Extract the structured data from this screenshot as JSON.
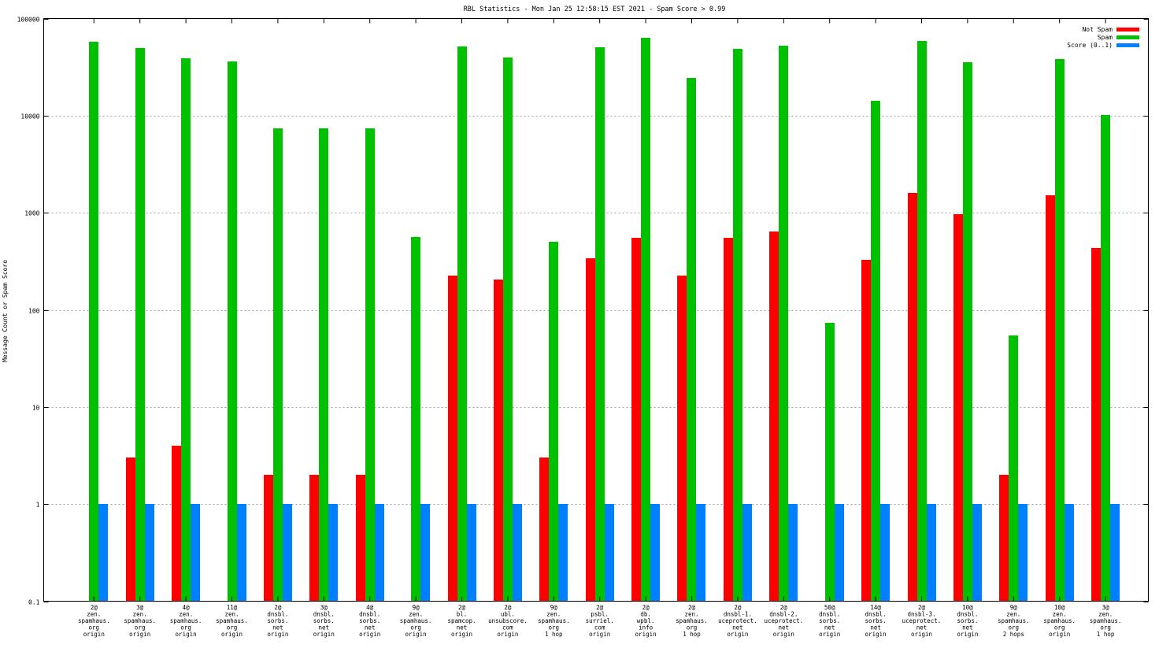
{
  "chart_data": {
    "type": "bar",
    "title": "RBL Statistics - Mon Jan 25 12:58:15 EST 2021 - Spam Score > 0.99",
    "ylabel": "Message Count or Spam Score",
    "xlabel": "",
    "yscale": "log",
    "ylim": [
      0.1,
      100000
    ],
    "yticks": [
      "0.1",
      "1",
      "10",
      "100",
      "1000",
      "10000",
      "100000"
    ],
    "grid": true,
    "legend_position": "top-right",
    "categories": [
      [
        "2@",
        "zen.",
        "spamhaus.",
        "org",
        "origin"
      ],
      [
        "3@",
        "zen.",
        "spamhaus.",
        "org",
        "origin"
      ],
      [
        "4@",
        "zen.",
        "spamhaus.",
        "org",
        "origin"
      ],
      [
        "11@",
        "zen.",
        "spamhaus.",
        "org",
        "origin"
      ],
      [
        "2@",
        "dnsbl.",
        "sorbs.",
        "net",
        "origin"
      ],
      [
        "3@",
        "dnsbl.",
        "sorbs.",
        "net",
        "origin"
      ],
      [
        "4@",
        "dnsbl.",
        "sorbs.",
        "net",
        "origin"
      ],
      [
        "9@",
        "zen.",
        "spamhaus.",
        "org",
        "origin"
      ],
      [
        "2@",
        "bl.",
        "spamcop.",
        "net",
        "origin"
      ],
      [
        "2@",
        "ubl.",
        "unsubscore.",
        "com",
        "origin"
      ],
      [
        "9@",
        "zen.",
        "spamhaus.",
        "org",
        "1 hop"
      ],
      [
        "2@",
        "psbl.",
        "surriel.",
        "com",
        "origin"
      ],
      [
        "2@",
        "db.",
        "wpbl.",
        "info",
        "origin"
      ],
      [
        "2@",
        "zen.",
        "spamhaus.",
        "org",
        "1 hop"
      ],
      [
        "2@",
        "dnsbl-1.",
        "uceprotect.",
        "net",
        "origin"
      ],
      [
        "2@",
        "dnsbl-2.",
        "uceprotect.",
        "net",
        "origin"
      ],
      [
        "50@",
        "dnsbl.",
        "sorbs.",
        "net",
        "origin"
      ],
      [
        "14@",
        "dnsbl.",
        "sorbs.",
        "net",
        "origin"
      ],
      [
        "2@",
        "dnsbl-3.",
        "uceprotect.",
        "net",
        "origin"
      ],
      [
        "10@",
        "dnsbl.",
        "sorbs.",
        "net",
        "origin"
      ],
      [
        "9@",
        "zen.",
        "spamhaus.",
        "org",
        "2 hops"
      ],
      [
        "10@",
        "zen.",
        "spamhaus.",
        "org",
        "origin"
      ],
      [
        "3@",
        "zen.",
        "spamhaus.",
        "org",
        "1 hop"
      ]
    ],
    "series": [
      {
        "name": "Not Spam",
        "color": "#ff0000",
        "values": [
          0,
          3,
          4,
          0,
          2,
          2,
          2,
          0,
          225,
          205,
          3,
          340,
          550,
          225,
          550,
          640,
          0,
          325,
          1600,
          970,
          2,
          1500,
          430
        ]
      },
      {
        "name": "Spam",
        "color": "#00c000",
        "values": [
          58000,
          50000,
          39000,
          36000,
          7400,
          7400,
          7400,
          560,
          52000,
          39500,
          500,
          51000,
          63000,
          24500,
          49000,
          53000,
          74,
          14200,
          59000,
          35500,
          55,
          38000,
          10200
        ]
      },
      {
        "name": "Score (0..1)",
        "color": "#0080ff",
        "values": [
          1,
          1,
          1,
          1,
          1,
          1,
          1,
          1,
          1,
          1,
          1,
          1,
          1,
          1,
          1,
          1,
          1,
          1,
          1,
          1,
          1,
          1,
          1
        ]
      }
    ]
  }
}
